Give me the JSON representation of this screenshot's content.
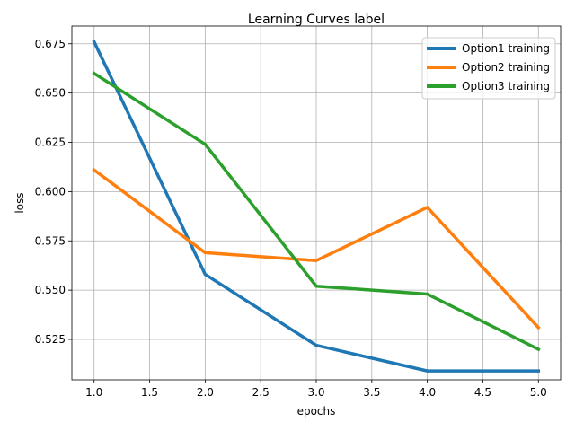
{
  "chart_data": {
    "type": "line",
    "title": "Learning Curves label",
    "xlabel": "epochs",
    "ylabel": "loss",
    "xlim": [
      0.8,
      5.2
    ],
    "ylim": [
      0.5045,
      0.684
    ],
    "xticks": [
      1.0,
      1.5,
      2.0,
      2.5,
      3.0,
      3.5,
      4.0,
      4.5,
      5.0
    ],
    "xtick_labels": [
      "1.0",
      "1.5",
      "2.0",
      "2.5",
      "3.0",
      "3.5",
      "4.0",
      "4.5",
      "5.0"
    ],
    "yticks": [
      0.525,
      0.55,
      0.575,
      0.6,
      0.625,
      0.65,
      0.675
    ],
    "ytick_labels": [
      "0.525",
      "0.550",
      "0.575",
      "0.600",
      "0.625",
      "0.650",
      "0.675"
    ],
    "grid": true,
    "legend_position": "top-right",
    "x": [
      1.0,
      2.0,
      3.0,
      4.0,
      5.0
    ],
    "series": [
      {
        "name": "Option1 training",
        "color": "#1f77b4",
        "values": [
          0.676,
          0.558,
          0.522,
          0.509,
          0.509
        ]
      },
      {
        "name": "Option2 training",
        "color": "#ff7f0e",
        "values": [
          0.611,
          0.569,
          0.565,
          0.592,
          0.531
        ]
      },
      {
        "name": "Option3 training",
        "color": "#2ca02c",
        "values": [
          0.66,
          0.624,
          0.552,
          0.548,
          0.52
        ]
      }
    ]
  }
}
